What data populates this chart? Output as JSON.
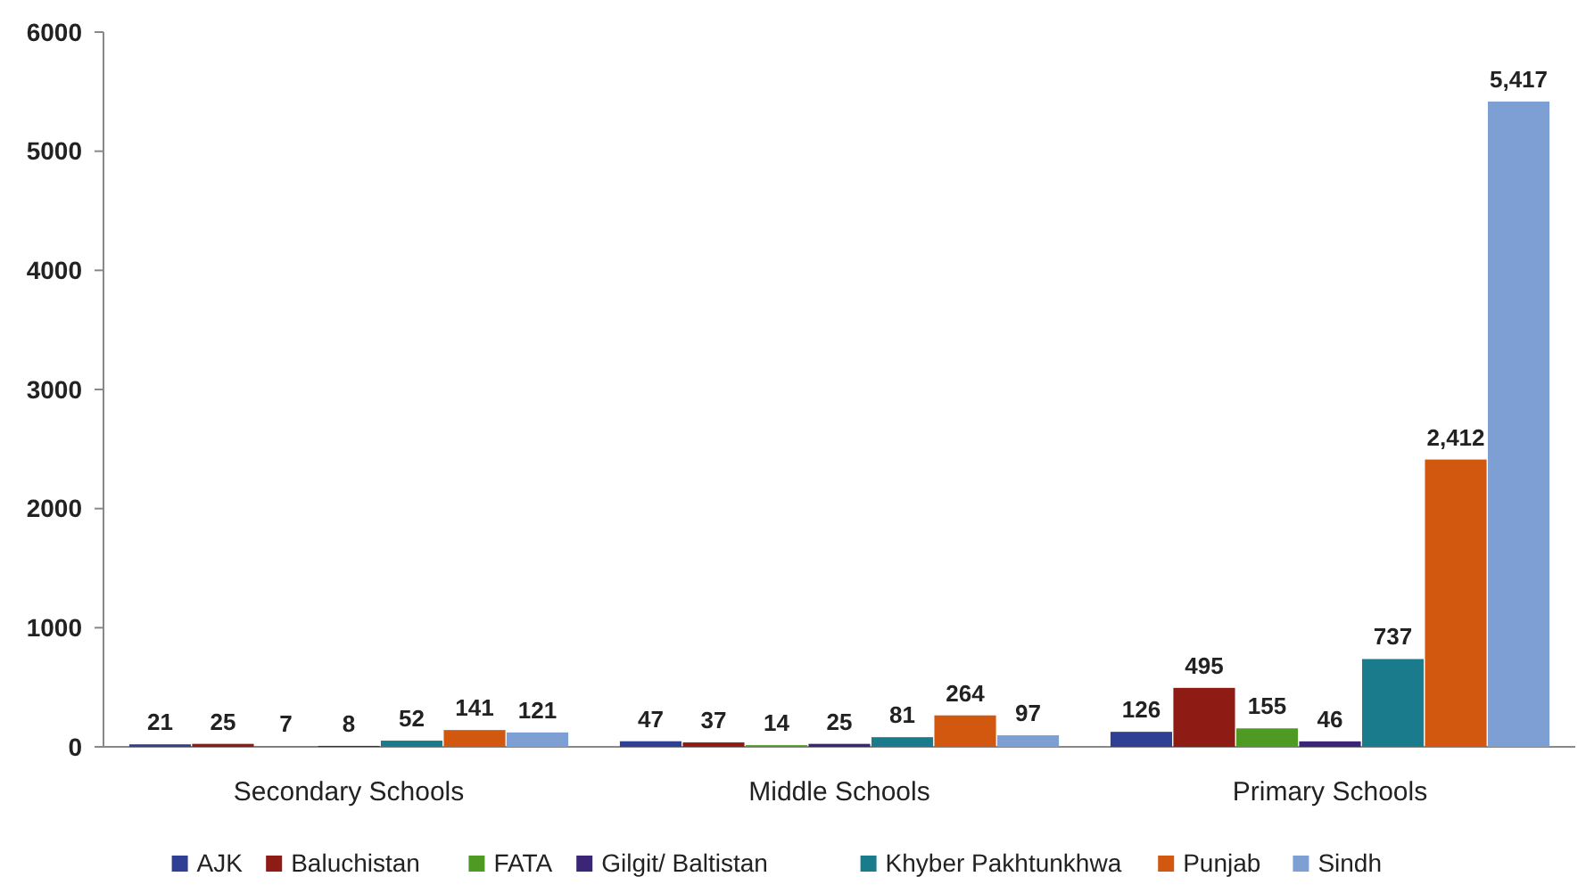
{
  "chart_data": {
    "type": "bar",
    "categories": [
      "Secondary Schools",
      "Middle Schools",
      "Primary Schools"
    ],
    "ylim": [
      0,
      6000
    ],
    "yticks": [
      0,
      1000,
      2000,
      3000,
      4000,
      5000,
      6000
    ],
    "grid": false,
    "legend": "bottom",
    "series": [
      {
        "name": "AJK",
        "color": "#2f3f93",
        "values": [
          21,
          47,
          126
        ],
        "value_labels": [
          "21",
          "47",
          "126"
        ]
      },
      {
        "name": "Baluchistan",
        "color": "#8e1b14",
        "values": [
          25,
          37,
          495
        ],
        "value_labels": [
          "25",
          "37",
          "495"
        ]
      },
      {
        "name": "FATA",
        "color": "#4f9a23",
        "values": [
          7,
          14,
          155
        ],
        "value_labels": [
          "7",
          "14",
          "155"
        ]
      },
      {
        "name": "Gilgit/ Baltistan",
        "color": "#3a2576",
        "values": [
          8,
          25,
          46
        ],
        "value_labels": [
          "8",
          "25",
          "46"
        ]
      },
      {
        "name": "Khyber Pakhtunkhwa",
        "color": "#197b8b",
        "values": [
          52,
          81,
          737
        ],
        "value_labels": [
          "52",
          "81",
          "737"
        ]
      },
      {
        "name": "Punjab",
        "color": "#d3580f",
        "values": [
          141,
          264,
          2412
        ],
        "value_labels": [
          "141",
          "264",
          "2,412"
        ]
      },
      {
        "name": "Sindh",
        "color": "#7d9fd3",
        "values": [
          121,
          97,
          5417
        ],
        "value_labels": [
          "121",
          "97",
          "5,417"
        ]
      }
    ]
  }
}
